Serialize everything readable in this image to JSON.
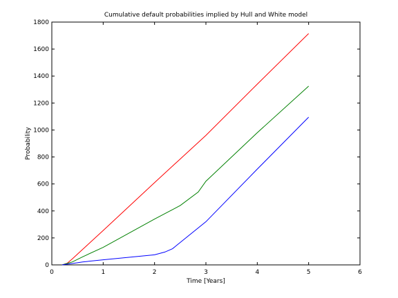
{
  "chart_data": {
    "type": "line",
    "title": "Cumulative default probabilities implied by Hull and White model",
    "xlabel": "Time [Years]",
    "ylabel": "Probability",
    "xlim": [
      0,
      6
    ],
    "ylim": [
      0,
      1800
    ],
    "xticks": [
      0,
      1,
      2,
      3,
      4,
      5,
      6
    ],
    "yticks": [
      0,
      200,
      400,
      600,
      800,
      1000,
      1200,
      1400,
      1600,
      1800
    ],
    "grid": false,
    "legend": "none",
    "series": [
      {
        "color": "#ff0000",
        "x": [
          0.2,
          0.3,
          0.4,
          0.6,
          1.0,
          2.0,
          3.0,
          4.0,
          5.0
        ],
        "y": [
          0,
          12,
          45,
          115,
          255,
          610,
          960,
          1340,
          1715
        ]
      },
      {
        "color": "#008000",
        "x": [
          0.2,
          0.4,
          0.6,
          1.0,
          2.0,
          2.5,
          2.85,
          3.0,
          4.0,
          5.0
        ],
        "y": [
          0,
          22,
          60,
          130,
          340,
          440,
          540,
          620,
          980,
          1325
        ]
      },
      {
        "color": "#0000ff",
        "x": [
          0.2,
          0.4,
          0.6,
          1.0,
          2.0,
          2.2,
          2.35,
          3.0,
          4.0,
          5.0
        ],
        "y": [
          0,
          10,
          22,
          38,
          75,
          95,
          120,
          320,
          710,
          1095
        ]
      }
    ]
  }
}
